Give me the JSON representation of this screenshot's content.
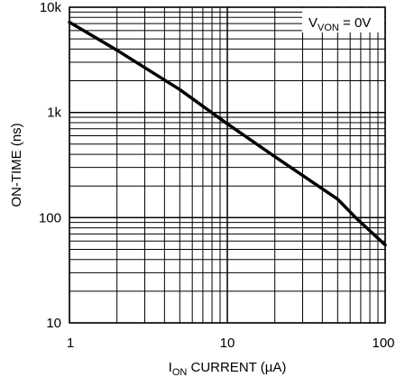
{
  "chart_data": {
    "type": "line",
    "x_scale": "log",
    "y_scale": "log",
    "xlim": [
      1,
      100
    ],
    "ylim": [
      10,
      10000
    ],
    "grid": true,
    "legend_position": "top-right",
    "x_ticks": [
      "1",
      "10",
      "100"
    ],
    "y_ticks": [
      "10",
      "100",
      "1k",
      "10k"
    ],
    "xlabel": {
      "main": "I",
      "sub": "ON",
      "rest": " CURRENT (µA)"
    },
    "ylabel": "ON-TIME (ns)",
    "annotation": {
      "main": "V",
      "sub": "VON",
      "rest": " = 0V"
    },
    "series": [
      {
        "x": [
          1,
          2,
          5,
          10,
          20,
          50,
          65,
          100
        ],
        "y": [
          7200,
          3900,
          1650,
          780,
          380,
          150,
          100,
          55
        ]
      }
    ],
    "line_color": "#000000",
    "grid_color": "#000000"
  }
}
